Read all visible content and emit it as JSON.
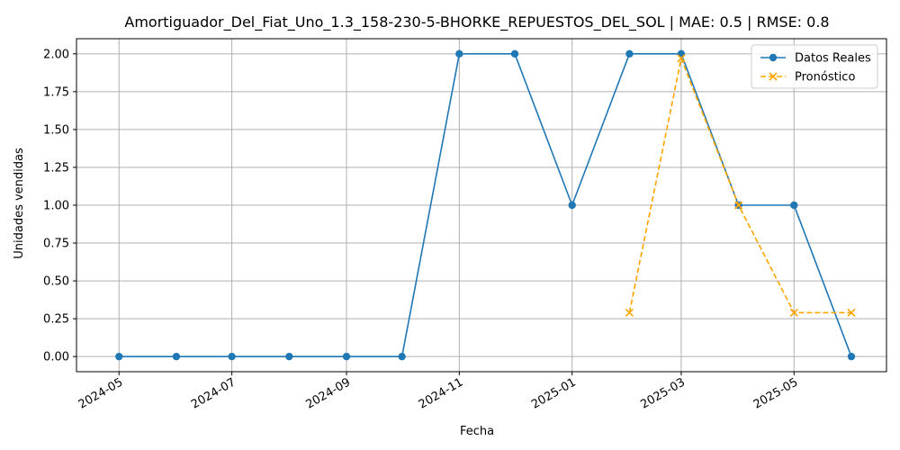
{
  "chart_data": {
    "type": "line",
    "title": "Amortiguador_Del_Fiat_Uno_1.3_158-230-5-BHORKE_REPUESTOS_DEL_SOL | MAE: 0.5 | RMSE: 0.8",
    "xlabel": "Fecha",
    "ylabel": "Unidades vendidas",
    "grid": true,
    "legend_position": "top-right",
    "ylim": [
      -0.1,
      2.1
    ],
    "xlim": [
      "2024-04-08",
      "2025-06-20"
    ],
    "x_ticks": [
      "2024-05",
      "2024-07",
      "2024-09",
      "2024-11",
      "2025-01",
      "2025-03",
      "2025-05"
    ],
    "y_ticks": [
      "0.00",
      "0.25",
      "0.50",
      "0.75",
      "1.00",
      "1.25",
      "1.50",
      "1.75",
      "2.00"
    ],
    "series": [
      {
        "name": "Datos Reales",
        "color": "#1f77b4",
        "marker": "circle",
        "linestyle": "solid",
        "x": [
          "2024-05-01",
          "2024-06-01",
          "2024-07-01",
          "2024-08-01",
          "2024-09-01",
          "2024-10-01",
          "2024-11-01",
          "2024-12-01",
          "2025-01-01",
          "2025-02-01",
          "2025-03-01",
          "2025-04-01",
          "2025-05-01",
          "2025-06-01"
        ],
        "values": [
          0,
          0,
          0,
          0,
          0,
          0,
          2,
          2,
          1,
          2,
          2,
          1,
          1,
          0
        ]
      },
      {
        "name": "Pronóstico",
        "color": "#ffa500",
        "marker": "x",
        "linestyle": "dashed",
        "x": [
          "2025-02-01",
          "2025-03-01",
          "2025-04-01",
          "2025-05-01",
          "2025-06-01"
        ],
        "values": [
          0.29,
          1.97,
          1.0,
          0.29,
          0.29
        ]
      }
    ]
  }
}
